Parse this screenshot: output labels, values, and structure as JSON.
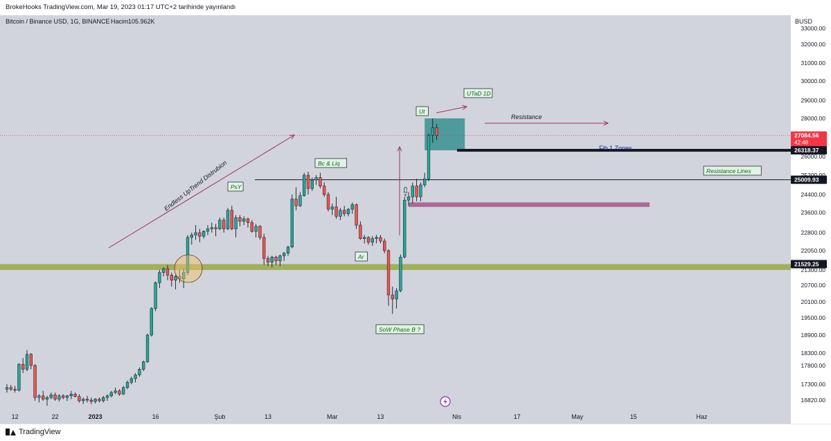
{
  "header": {
    "attribution": "BrokeHooks TradingView.com, Mar 19, 2023 01:17 UTC+2 tarihinde yayınlandı"
  },
  "footer": {
    "brand": "TradingView"
  },
  "chart_data": {
    "type": "candlestick",
    "title": "Bitcoin / Binance USD, 1G, BINANCE",
    "volume_label": "Hacim",
    "volume_value": "105.962K",
    "currency": "BUSD",
    "ylim": [
      16500,
      33300
    ],
    "y_ticks": [
      16820,
      17300,
      17800,
      18300,
      18900,
      19500,
      20100,
      20700,
      21300,
      22050,
      22800,
      23600,
      24400,
      25200,
      26000,
      27000,
      28000,
      29000,
      30000,
      31000,
      32000,
      33000
    ],
    "y_tick_labels": [
      "16820.00",
      "17300.00",
      "17800.00",
      "18300.00",
      "18900.00",
      "19500.00",
      "20100.00",
      "20700.00",
      "21300.00",
      "22050.00",
      "22800.00",
      "23600.00",
      "24400.00",
      "25200.00",
      "26000.00",
      "27000.00",
      "28000.00",
      "29000.00",
      "30000.00",
      "31000.00",
      "32000.00",
      "33000.00"
    ],
    "x_ticks": [
      {
        "label": "12",
        "index": 2
      },
      {
        "label": "22",
        "index": 12
      },
      {
        "label": "2023",
        "index": 22
      },
      {
        "label": "16",
        "index": 37
      },
      {
        "label": "Şub",
        "index": 53
      },
      {
        "label": "13",
        "index": 65
      },
      {
        "label": "Mar",
        "index": 81
      },
      {
        "label": "13",
        "index": 93
      },
      {
        "label": "Nis",
        "index": 112
      },
      {
        "label": "17",
        "index": 127
      },
      {
        "label": "May",
        "index": 142
      },
      {
        "label": "15",
        "index": 156
      },
      {
        "label": "Haz",
        "index": 173
      }
    ],
    "price_tags": [
      {
        "label": "27084.56",
        "sub": "42:48",
        "value": 27084.56,
        "color": "#f23645"
      },
      {
        "label": "26318.37",
        "value": 26318.37,
        "color": "#131722"
      },
      {
        "label": "25009.93",
        "value": 25009.93,
        "color": "#131722"
      },
      {
        "label": "21529.25",
        "value": 21529.25,
        "color": "#131722"
      }
    ],
    "candles": [
      [
        17150,
        17300,
        17050,
        17200
      ],
      [
        17200,
        17280,
        17100,
        17150
      ],
      [
        17150,
        17250,
        17050,
        17120
      ],
      [
        17120,
        17900,
        17080,
        17850
      ],
      [
        17850,
        18100,
        17600,
        17700
      ],
      [
        17700,
        18400,
        17650,
        18250
      ],
      [
        18250,
        18300,
        17700,
        17800
      ],
      [
        17800,
        17850,
        16800,
        16900
      ],
      [
        16900,
        17000,
        16750,
        16950
      ],
      [
        16950,
        17100,
        16800,
        16850
      ],
      [
        16850,
        16950,
        16650,
        16900
      ],
      [
        16900,
        17050,
        16850,
        16980
      ],
      [
        16980,
        17050,
        16800,
        16850
      ],
      [
        16850,
        17000,
        16780,
        16950
      ],
      [
        16950,
        17000,
        16850,
        16900
      ],
      [
        16900,
        16980,
        16800,
        16950
      ],
      [
        16950,
        17100,
        16850,
        17000
      ],
      [
        17000,
        17050,
        16900,
        16930
      ],
      [
        16930,
        17000,
        16750,
        16800
      ],
      [
        16800,
        16900,
        16700,
        16850
      ],
      [
        16850,
        16950,
        16750,
        16820
      ],
      [
        16820,
        16900,
        16700,
        16780
      ],
      [
        16780,
        16880,
        16720,
        16850
      ],
      [
        16850,
        16900,
        16750,
        16800
      ],
      [
        16800,
        16950,
        16750,
        16900
      ],
      [
        16900,
        17000,
        16800,
        16950
      ],
      [
        16950,
        17100,
        16900,
        17050
      ],
      [
        17050,
        17200,
        17000,
        17100
      ],
      [
        17100,
        17150,
        16950,
        17000
      ],
      [
        17000,
        17250,
        16980,
        17200
      ],
      [
        17200,
        17400,
        17150,
        17350
      ],
      [
        17350,
        17500,
        17300,
        17450
      ],
      [
        17450,
        17600,
        17350,
        17550
      ],
      [
        17550,
        17750,
        17500,
        17700
      ],
      [
        17700,
        18000,
        17650,
        17950
      ],
      [
        17950,
        18950,
        17900,
        18900
      ],
      [
        18900,
        19900,
        18850,
        19850
      ],
      [
        19850,
        20850,
        19750,
        20800
      ],
      [
        20800,
        21300,
        20600,
        21200
      ],
      [
        21200,
        21400,
        21050,
        21350
      ],
      [
        21350,
        21500,
        20900,
        21100
      ],
      [
        21100,
        21200,
        20650,
        20900
      ],
      [
        20900,
        21100,
        20550,
        21050
      ],
      [
        21050,
        21300,
        20800,
        20950
      ],
      [
        20950,
        21350,
        20600,
        21200
      ],
      [
        21200,
        22700,
        21100,
        22600
      ],
      [
        22600,
        22800,
        22300,
        22700
      ],
      [
        22700,
        23100,
        22500,
        22800
      ],
      [
        22800,
        22950,
        22400,
        22650
      ],
      [
        22650,
        22900,
        22550,
        22850
      ],
      [
        22850,
        23100,
        22700,
        22950
      ],
      [
        22950,
        23200,
        22800,
        23000
      ],
      [
        23000,
        23150,
        22650,
        22950
      ],
      [
        22950,
        23400,
        22900,
        23300
      ],
      [
        23300,
        23400,
        22800,
        22950
      ],
      [
        22950,
        23800,
        22900,
        23700
      ],
      [
        23700,
        23900,
        22900,
        22950
      ],
      [
        22950,
        23500,
        22600,
        23400
      ],
      [
        23400,
        23500,
        23050,
        23250
      ],
      [
        23250,
        23450,
        23100,
        23350
      ],
      [
        23350,
        23400,
        23000,
        23200
      ],
      [
        23200,
        23300,
        22800,
        22850
      ],
      [
        22850,
        23150,
        22600,
        23050
      ],
      [
        23050,
        23100,
        22500,
        22600
      ],
      [
        22600,
        22750,
        21500,
        21750
      ],
      [
        21750,
        21850,
        21450,
        21600
      ],
      [
        21600,
        21850,
        21400,
        21800
      ],
      [
        21800,
        21850,
        21500,
        21650
      ],
      [
        21650,
        21900,
        21450,
        21850
      ],
      [
        21850,
        22000,
        21650,
        21950
      ],
      [
        21950,
        22250,
        21850,
        22200
      ],
      [
        22200,
        24400,
        22150,
        24200
      ],
      [
        24200,
        24700,
        23700,
        23900
      ],
      [
        23900,
        24500,
        23850,
        24350
      ],
      [
        24350,
        25300,
        24300,
        25200
      ],
      [
        25200,
        25350,
        24400,
        24650
      ],
      [
        24650,
        25100,
        24550,
        25000
      ],
      [
        25000,
        25200,
        24800,
        25100
      ],
      [
        25100,
        25300,
        24650,
        24750
      ],
      [
        24750,
        24900,
        24300,
        24400
      ],
      [
        24400,
        24500,
        23650,
        23750
      ],
      [
        23750,
        24000,
        23500,
        23850
      ],
      [
        23850,
        24300,
        23350,
        23450
      ],
      [
        23450,
        23800,
        23300,
        23700
      ],
      [
        23700,
        23900,
        23450,
        23550
      ],
      [
        23550,
        23800,
        23450,
        23750
      ],
      [
        23750,
        24050,
        23550,
        23950
      ],
      [
        23950,
        24000,
        22950,
        23100
      ],
      [
        23100,
        23250,
        22500,
        22550
      ],
      [
        22550,
        22700,
        22350,
        22600
      ],
      [
        22600,
        22650,
        22300,
        22400
      ],
      [
        22400,
        22650,
        22250,
        22550
      ],
      [
        22550,
        22700,
        22350,
        22600
      ],
      [
        22600,
        22700,
        22350,
        22450
      ],
      [
        22450,
        22550,
        21950,
        22050
      ],
      [
        22050,
        22100,
        19950,
        20350
      ],
      [
        20350,
        20650,
        19650,
        20200
      ],
      [
        20200,
        20600,
        19850,
        20500
      ],
      [
        20500,
        21900,
        20450,
        21800
      ],
      [
        21800,
        24300,
        21750,
        24150
      ],
      [
        24150,
        24500,
        23900,
        24300
      ],
      [
        24300,
        24900,
        24000,
        24750
      ],
      [
        24750,
        25050,
        24100,
        24300
      ],
      [
        24300,
        24900,
        24100,
        24800
      ],
      [
        24800,
        25300,
        24700,
        25050
      ],
      [
        25050,
        27200,
        24950,
        27100
      ],
      [
        27100,
        28000,
        26700,
        27500
      ],
      [
        27500,
        27700,
        26850,
        27084
      ]
    ],
    "zones": [
      {
        "name": "support-zone",
        "from": 21300,
        "to": 21529.25,
        "x_start": 0,
        "x_end": "right",
        "color": "#9aa845"
      },
      {
        "name": "demand-zone",
        "from": 23850,
        "to": 24050,
        "x_start": 100,
        "x_end": 160,
        "color": "#a34c86"
      },
      {
        "name": "fib-zone",
        "from": 26318.37,
        "to": 28000,
        "x_start": 104,
        "x_end": 114,
        "color": "#2e8b8b"
      }
    ],
    "annotations": {
      "trend_label": "Endless UpTrend Distrubion",
      "psy": "PsY",
      "bc_liq": "Bc & Liq",
      "ar": "Ar",
      "sow": "SoW Phase B ?",
      "ut": "Ut",
      "utad": "UTaD 1D",
      "resistance": "Resistance",
      "fib": "Fib 1 Zones",
      "resistance_lines": "Resistance Lines",
      "c2": "C2+"
    }
  }
}
